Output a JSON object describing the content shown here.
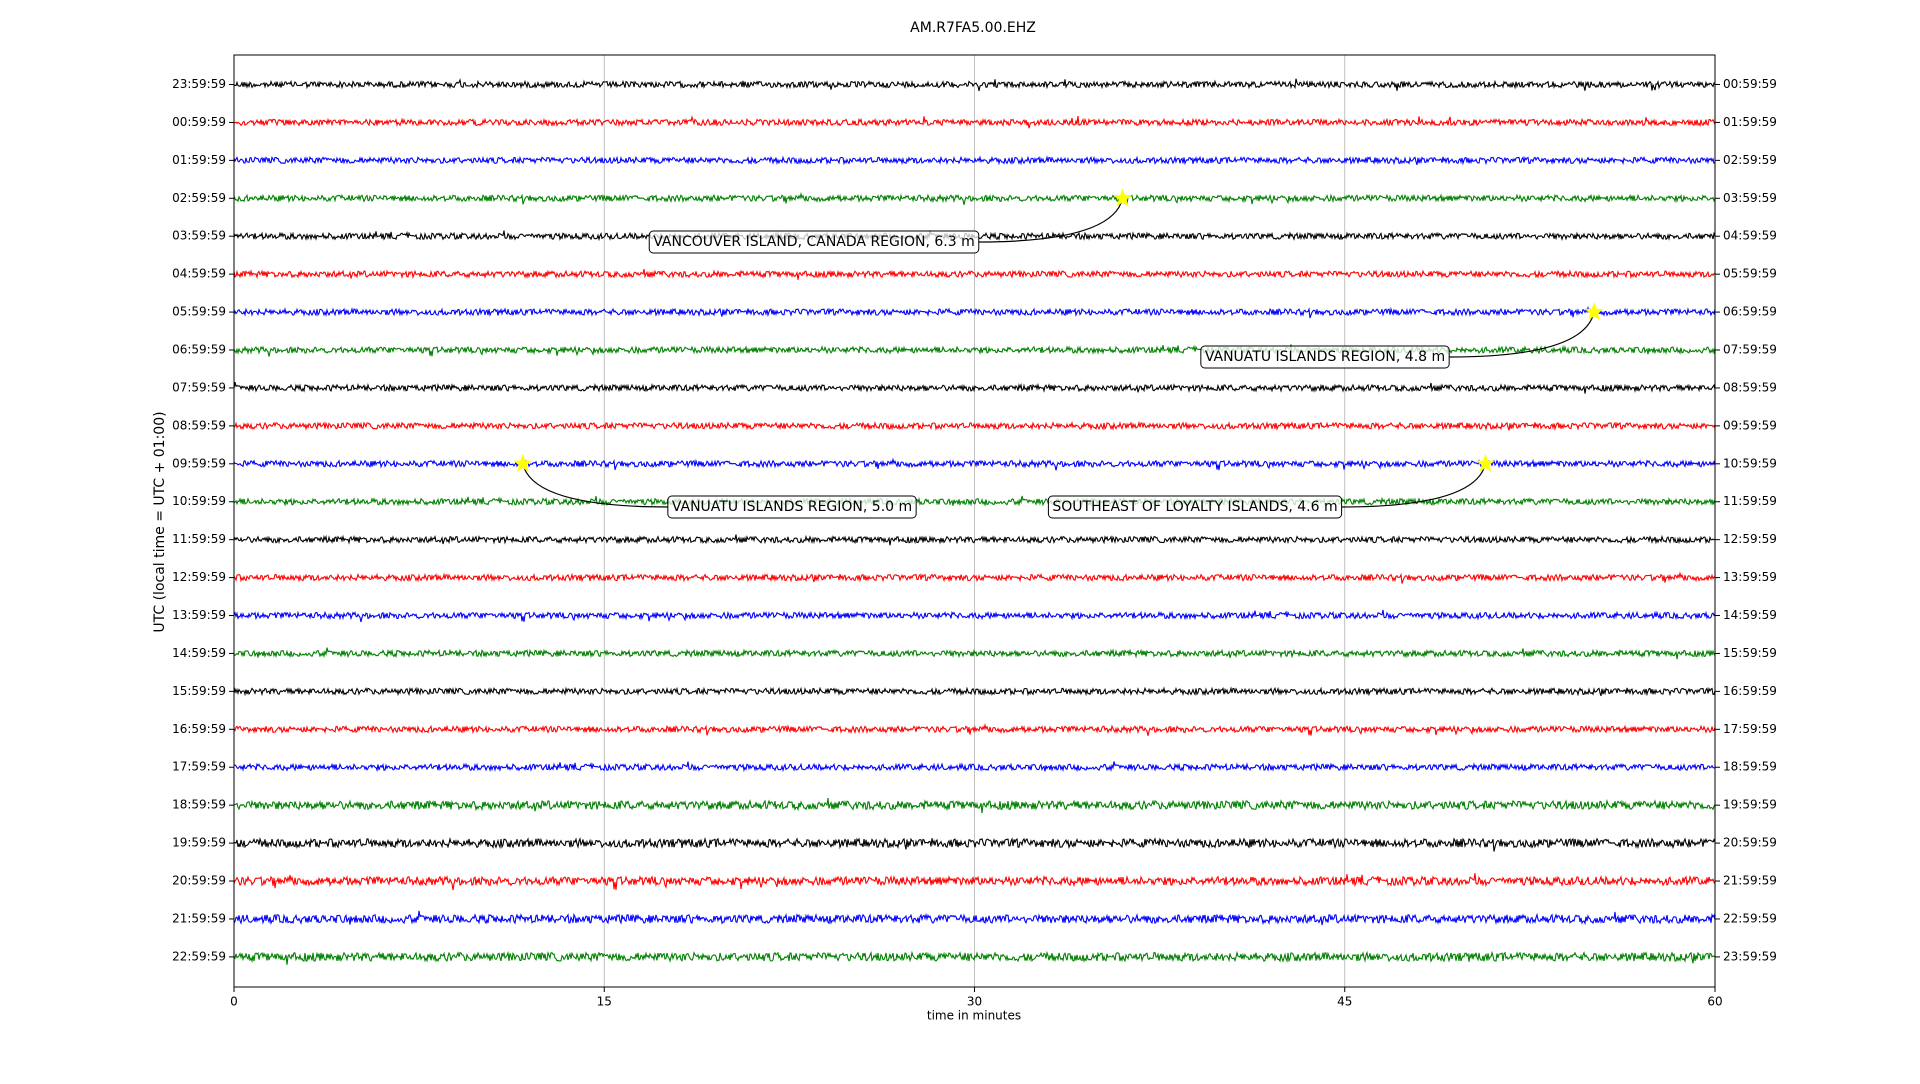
{
  "chart_data": {
    "type": "dayplot",
    "title": "AM.R7FA5.00.EHZ",
    "xlabel": "time in minutes",
    "ylabel": "UTC (local time = UTC + 01:00)",
    "xlim": [
      0,
      60
    ],
    "xticks": [
      0,
      15,
      30,
      45,
      60
    ],
    "grid": true,
    "colors": [
      "#000000",
      "#ff0000",
      "#0000ff",
      "#008000"
    ],
    "row_labels": [
      "23:59:59",
      "00:59:59",
      "01:59:59",
      "02:59:59",
      "03:59:59",
      "04:59:59",
      "05:59:59",
      "06:59:59",
      "07:59:59",
      "08:59:59",
      "09:59:59",
      "10:59:59",
      "11:59:59",
      "12:59:59",
      "13:59:59",
      "14:59:59",
      "15:59:59",
      "16:59:59",
      "17:59:59",
      "18:59:59",
      "19:59:59",
      "20:59:59",
      "21:59:59",
      "22:59:59"
    ],
    "right_labels": [
      "00:59:59",
      "01:59:59",
      "02:59:59",
      "03:59:59",
      "04:59:59",
      "05:59:59",
      "06:59:59",
      "07:59:59",
      "08:59:59",
      "09:59:59",
      "10:59:59",
      "11:59:59",
      "12:59:59",
      "13:59:59",
      "14:59:59",
      "15:59:59",
      "16:59:59",
      "17:59:59",
      "18:59:59",
      "19:59:59",
      "20:59:59",
      "21:59:59",
      "22:59:59",
      "23:59:59"
    ],
    "events": [
      {
        "label": "VANCOUVER ISLAND, CANADA REGION, 6.3 m",
        "x": 36.0,
        "row": 3
      },
      {
        "label": "VANUATU ISLANDS REGION, 4.8 m",
        "x": 55.1,
        "row": 6
      },
      {
        "label": "VANUATU ISLANDS REGION, 5.0 m",
        "x": 11.7,
        "row": 10
      },
      {
        "label": "SOUTHEAST OF LOYALTY ISLANDS, 4.6 m",
        "x": 50.7,
        "row": 10
      }
    ]
  }
}
